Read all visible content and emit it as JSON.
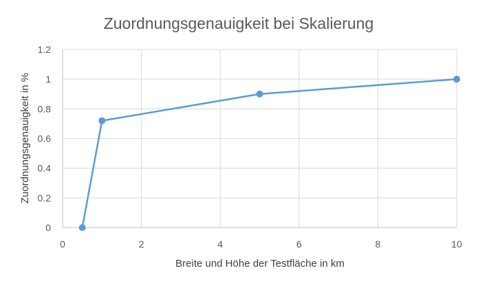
{
  "chart_data": {
    "type": "scatter",
    "title": "Zuordnungsgenauigkeit bei Skalierung",
    "xlabel": "Breite und Höhe der Testfläche in km",
    "ylabel": "Zuordnungsgenauigkeit in %",
    "xlim": [
      0,
      10
    ],
    "ylim": [
      0,
      1.2
    ],
    "xticks": [
      0,
      2,
      4,
      6,
      8,
      10
    ],
    "yticks": [
      0,
      0.2,
      0.4,
      0.6,
      0.8,
      1,
      1.2
    ],
    "xtick_labels": [
      "0",
      "2",
      "4",
      "6",
      "8",
      "10"
    ],
    "ytick_labels": [
      "0",
      "0.2",
      "0.4",
      "0.6",
      "0.8",
      "1",
      "1.2"
    ],
    "grid": true,
    "legend": "none",
    "series": [
      {
        "color": "#5b9bd5",
        "x": [
          0.5,
          1,
          5,
          10
        ],
        "y": [
          0,
          0.72,
          0.9,
          1.0
        ]
      }
    ]
  }
}
